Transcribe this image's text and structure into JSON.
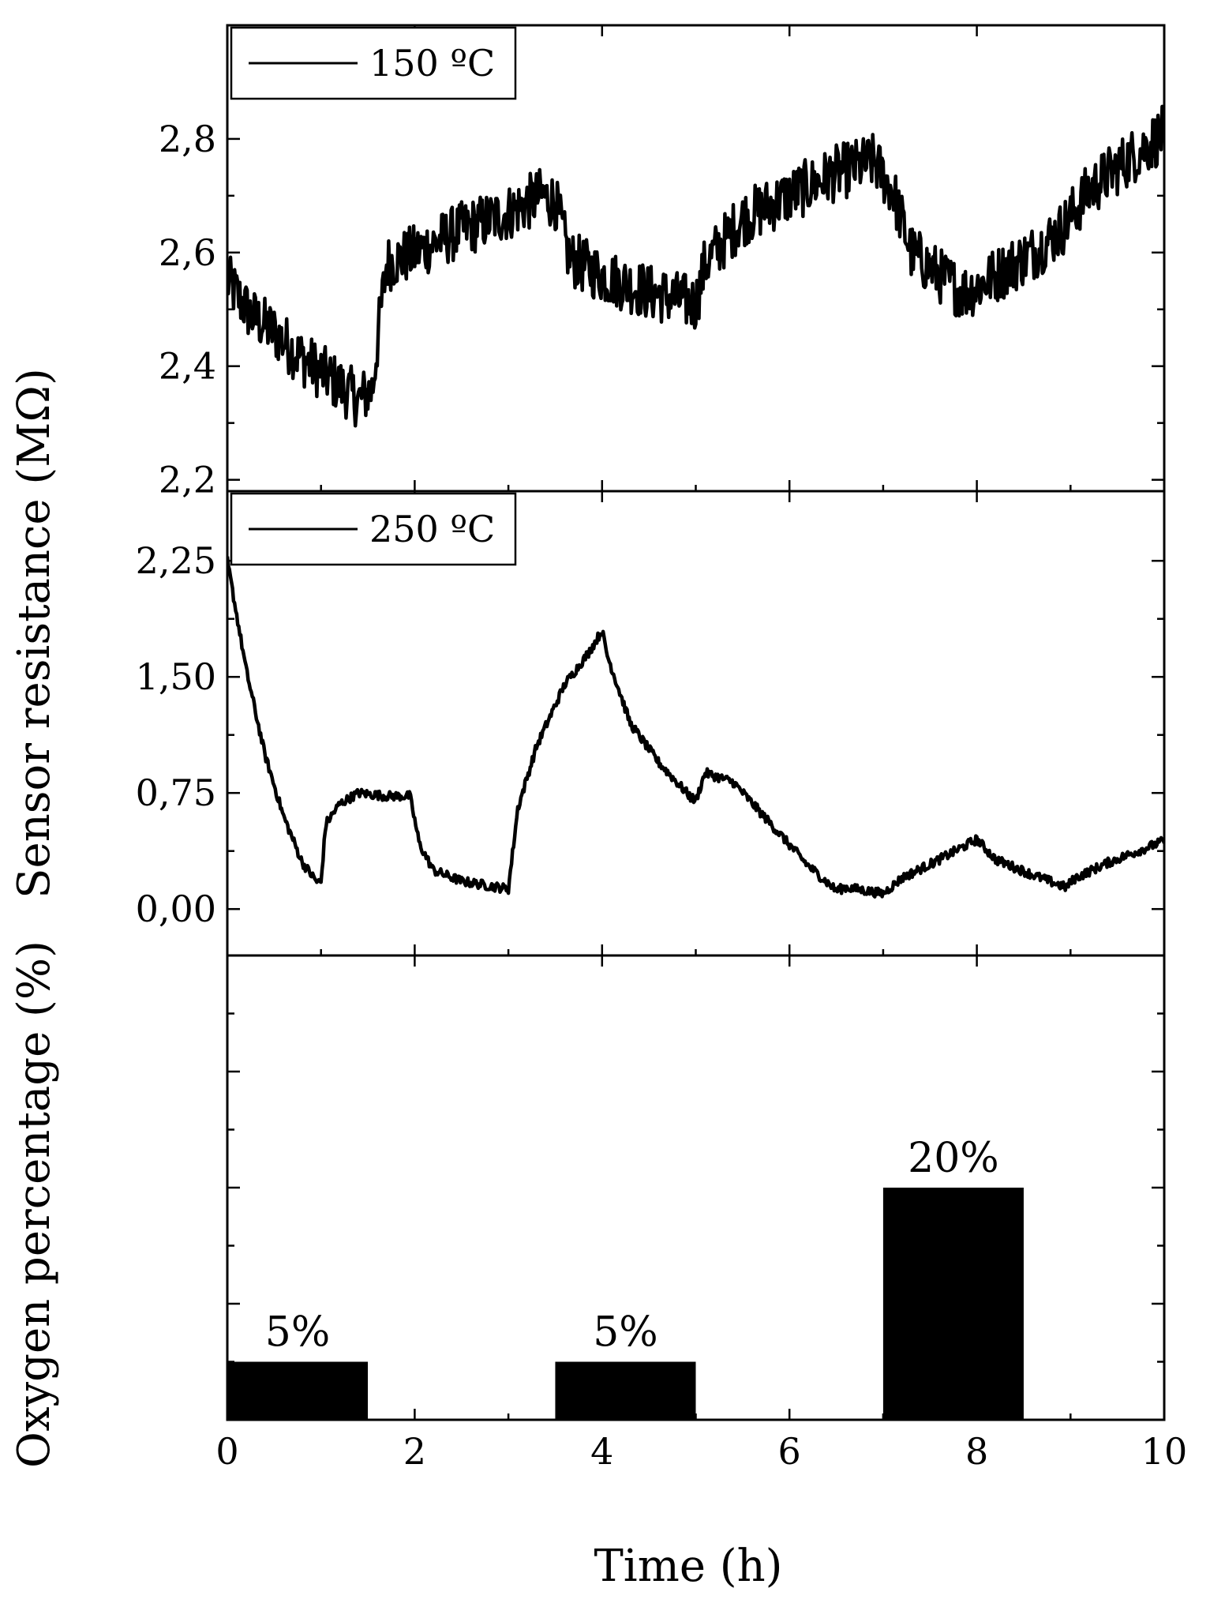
{
  "chart_data": [
    {
      "type": "line",
      "panel": "top",
      "legend_position": "top-left",
      "series": [
        {
          "name": "150 ºC",
          "color": "#000000",
          "x": [
            0,
            0.25,
            0.5,
            0.75,
            1.0,
            1.25,
            1.4,
            1.55,
            1.62,
            1.7,
            2.0,
            2.5,
            3.0,
            3.35,
            3.5,
            3.65,
            4.0,
            4.5,
            5.0,
            5.1,
            5.5,
            6.0,
            6.5,
            6.9,
            7.1,
            7.3,
            7.6,
            7.85,
            8.0,
            8.3,
            8.6,
            8.9,
            9.2,
            9.5,
            10.0
          ],
          "y": [
            2.55,
            2.49,
            2.46,
            2.42,
            2.39,
            2.36,
            2.34,
            2.36,
            2.47,
            2.58,
            2.6,
            2.64,
            2.67,
            2.7,
            2.69,
            2.59,
            2.56,
            2.53,
            2.51,
            2.58,
            2.66,
            2.7,
            2.74,
            2.76,
            2.71,
            2.6,
            2.56,
            2.53,
            2.54,
            2.57,
            2.6,
            2.64,
            2.71,
            2.75,
            2.81
          ],
          "noise": 0.05
        }
      ],
      "y_ticks": [
        "2,2",
        "2,4",
        "2,6",
        "2,8"
      ],
      "y_tick_values": [
        2.2,
        2.4,
        2.6,
        2.8
      ],
      "xlim": [
        0,
        10
      ],
      "ylim": [
        2.18,
        3.0
      ],
      "grid": false
    },
    {
      "type": "line",
      "panel": "middle",
      "legend_position": "top-left",
      "series": [
        {
          "name": "250 ºC",
          "color": "#000000",
          "x": [
            0,
            0.2,
            0.4,
            0.6,
            0.8,
            0.95,
            1.0,
            1.05,
            1.2,
            1.4,
            1.7,
            1.95,
            2.05,
            2.2,
            2.5,
            2.8,
            3.0,
            3.1,
            3.3,
            3.6,
            3.85,
            4.0,
            4.05,
            4.3,
            4.6,
            4.95,
            5.0,
            5.1,
            5.4,
            5.8,
            6.2,
            6.5,
            6.6,
            6.8,
            7.0,
            7.2,
            7.6,
            8.0,
            8.2,
            8.6,
            8.95,
            9.05,
            9.4,
            10.0
          ],
          "y": [
            2.25,
            1.55,
            1.0,
            0.6,
            0.3,
            0.18,
            0.17,
            0.55,
            0.68,
            0.75,
            0.73,
            0.73,
            0.42,
            0.25,
            0.18,
            0.15,
            0.13,
            0.65,
            1.05,
            1.45,
            1.65,
            1.8,
            1.65,
            1.2,
            0.95,
            0.72,
            0.7,
            0.88,
            0.82,
            0.55,
            0.28,
            0.12,
            0.14,
            0.12,
            0.1,
            0.2,
            0.32,
            0.45,
            0.32,
            0.22,
            0.14,
            0.2,
            0.3,
            0.44
          ],
          "noise": 0.03
        }
      ],
      "y_ticks": [
        "0,00",
        "0,75",
        "1,50",
        "2,25"
      ],
      "y_tick_values": [
        0.0,
        0.75,
        1.5,
        2.25
      ],
      "xlim": [
        0,
        10
      ],
      "ylim": [
        -0.3,
        2.7
      ],
      "grid": false
    },
    {
      "type": "bar",
      "panel": "bottom",
      "bars": [
        {
          "x_start": 0,
          "x_end": 1.5,
          "value": 5,
          "label": "5%"
        },
        {
          "x_start": 3.5,
          "x_end": 5.0,
          "value": 5,
          "label": "5%"
        },
        {
          "x_start": 7.0,
          "x_end": 8.5,
          "value": 20,
          "label": "20%"
        }
      ],
      "x_ticks": [
        "0",
        "2",
        "4",
        "6",
        "8",
        "10"
      ],
      "x_tick_values": [
        0,
        2,
        4,
        6,
        8,
        10
      ],
      "xlim": [
        0,
        10
      ],
      "ylim": [
        0,
        40
      ],
      "xlabel": "Time (h)",
      "ylabel": "Oxygen percentage (%)",
      "grid": false
    }
  ],
  "shared": {
    "upper_ylabel": "Sensor resistance (MΩ)",
    "line_color": "#000000",
    "bar_color": "#000000"
  }
}
